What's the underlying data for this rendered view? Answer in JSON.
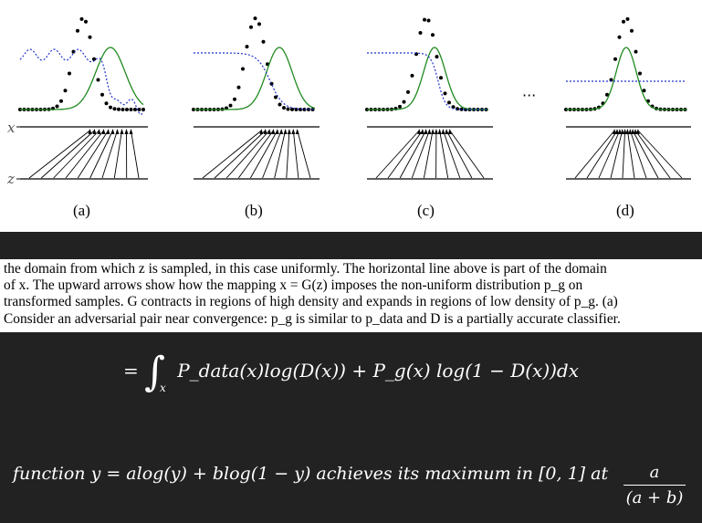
{
  "figure": {
    "axis_labels": {
      "x": "x",
      "z": "z"
    },
    "panel_labels": [
      "(a)",
      "(b)",
      "(c)",
      "(d)"
    ],
    "ellipsis": "···",
    "colors": {
      "data": "#000000",
      "generator": "#1f8a1f",
      "discriminator": "#2233cc"
    }
  },
  "caption": {
    "lines": [
      "the domain from which z is sampled, in this case uniformly. The horizontal line above is part of the domain",
      "of x. The upward arrows show how the mapping x = G(z) imposes the non-uniform distribution p_g on",
      "transformed samples. G contracts in regions of high density and expands in regions of low density of p_g. (a)",
      "Consider an adversarial pair near convergence: p_g is similar to p_data and D is a partially accurate classifier."
    ]
  },
  "equation": {
    "prefix": "=",
    "integral_sub": "x",
    "body": "P_data(x)log(D(x)) + P_g(x) log(1 − D(x))dx"
  },
  "statement": {
    "text": "function y = alog(y) + blog(1 − y) achieves its maximum in [0, 1] at",
    "fraction_num": "a",
    "fraction_den": "(a + b)"
  }
}
